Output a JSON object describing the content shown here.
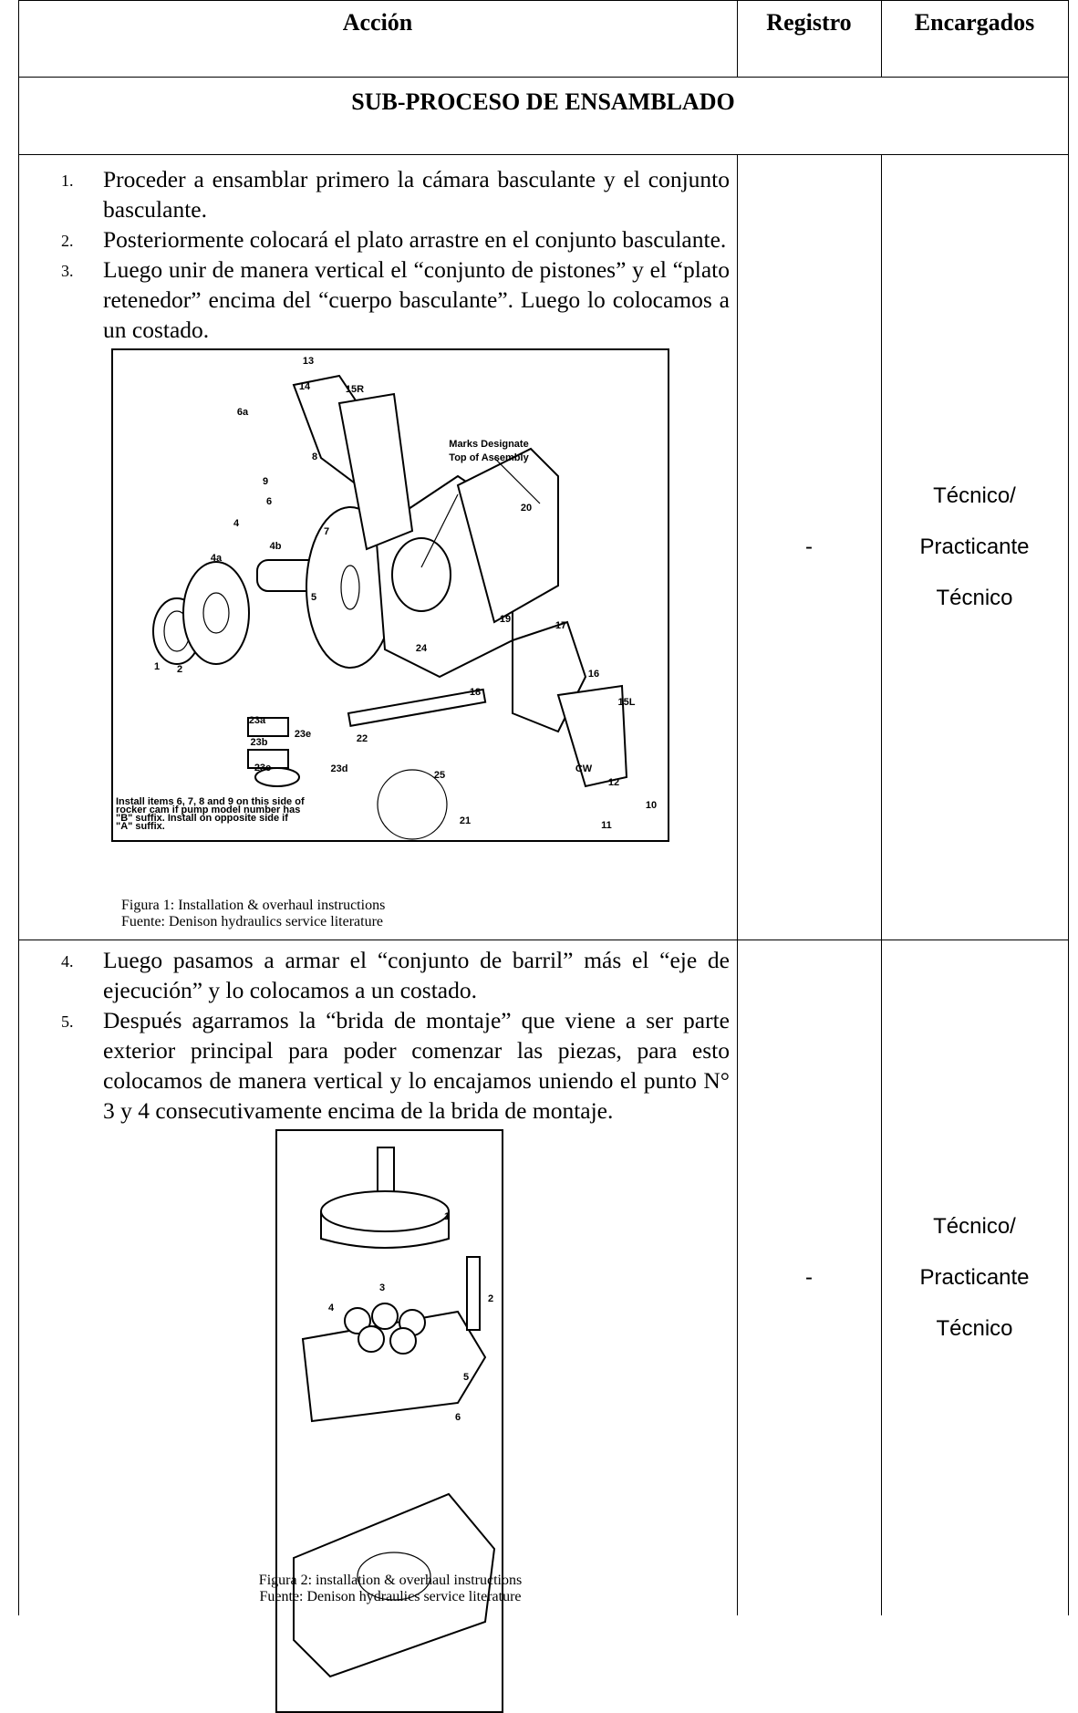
{
  "header": {
    "accion": "Acción",
    "registro": "Registro",
    "encargados": "Encargados"
  },
  "section": "SUB-PROCESO DE ENSAMBLADO",
  "rows": [
    {
      "steps": [
        {
          "number": "1.",
          "text": "Proceder a ensamblar primero la cámara basculante y el conjunto basculante."
        },
        {
          "number": "2.",
          "text": "Posteriormente colocará el plato arrastre en el conjunto basculante."
        },
        {
          "number": "3.",
          "text": "Luego unir de manera vertical el “conjunto de pistones” y el “plato retenedor” encima del “cuerpo basculante”. Luego lo colocamos a un costado."
        }
      ],
      "figure": {
        "labels": [
          "13",
          "14",
          "15R",
          "6a",
          "8",
          "9",
          "6",
          "7",
          "Marks Designate",
          "Top of Assembly",
          "20",
          "4",
          "4b",
          "4a",
          "5",
          "19",
          "17",
          "24",
          "1",
          "2",
          "16",
          "18",
          "15L",
          "23a",
          "23e",
          "22",
          "23b",
          "23c",
          "23d",
          "25",
          "12",
          "21",
          "10",
          "11",
          "CW"
        ],
        "note": [
          "Install items 6, 7, 8 and 9 on this side of",
          "rocker cam if pump model number has",
          "\"B\" suffix. Install on opposite side if",
          "\"A\" suffix."
        ],
        "caption": "Figura 1: Installation & overhaul instructions",
        "source": "Fuente: Denison hydraulics service literature"
      },
      "registro": "-",
      "encargados": [
        "Técnico/",
        "Practicante",
        "Técnico"
      ]
    },
    {
      "steps": [
        {
          "number": "4.",
          "text": "Luego pasamos a armar el “conjunto de barril” más el “eje de ejecución” y lo colocamos a un costado."
        },
        {
          "number": "5.",
          "text": "Después agarramos la “brida de montaje” que viene a ser parte exterior principal para poder comenzar las piezas, para esto colocamos de manera vertical y lo encajamos uniendo el punto N° 3 y 4 consecutivamente encima de la brida de montaje."
        }
      ],
      "figure": {
        "labels": [
          "1",
          "2",
          "3",
          "4",
          "5",
          "6"
        ],
        "caption": "Figura 2: installation & overhaul instructions",
        "source": "Fuente: Denison hydraulics service literature"
      },
      "registro": "-",
      "encargados": [
        "Técnico/",
        "Practicante",
        "Técnico"
      ]
    }
  ]
}
